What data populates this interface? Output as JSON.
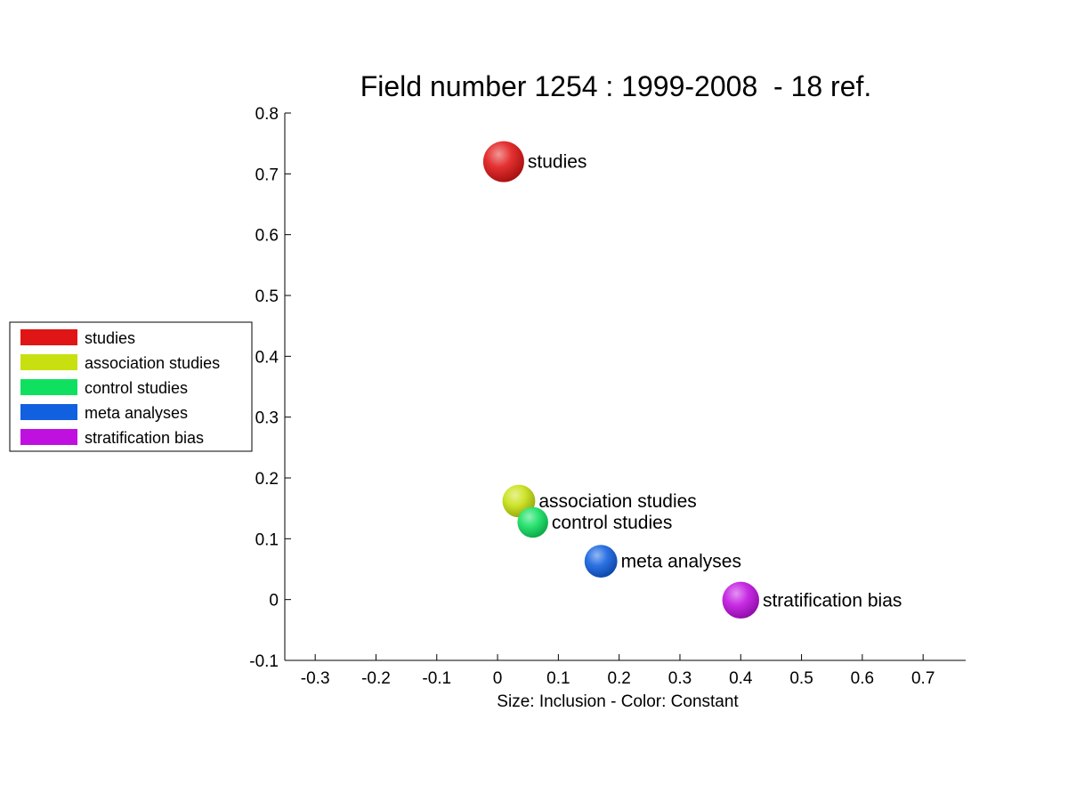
{
  "chart_data": {
    "type": "scatter",
    "title": "Field number 1254 : 1999-2008  - 18 ref.",
    "xlabel": "Size: Inclusion - Color: Constant",
    "ylabel": "",
    "xlim": [
      -0.35,
      0.77
    ],
    "ylim": [
      -0.1,
      0.8
    ],
    "xticks": [
      "-0.3",
      "-0.2",
      "-0.1",
      "0",
      "0.1",
      "0.2",
      "0.3",
      "0.4",
      "0.5",
      "0.6",
      "0.7"
    ],
    "yticks": [
      "-0.1",
      "0",
      "0.1",
      "0.2",
      "0.3",
      "0.4",
      "0.5",
      "0.6",
      "0.7",
      "0.8"
    ],
    "grid": false,
    "legend_position": "left",
    "series": [
      {
        "name": "studies",
        "x": 0.01,
        "y": 0.72,
        "size": 1.0,
        "color": "#e01515"
      },
      {
        "name": "association studies",
        "x": 0.035,
        "y": 0.162,
        "size": 0.8,
        "color": "#c8e010"
      },
      {
        "name": "control studies",
        "x": 0.058,
        "y": 0.127,
        "size": 0.75,
        "color": "#10e060"
      },
      {
        "name": "meta analyses",
        "x": 0.17,
        "y": 0.063,
        "size": 0.8,
        "color": "#1060e0"
      },
      {
        "name": "stratification bias",
        "x": 0.4,
        "y": -0.001,
        "size": 0.9,
        "color": "#c010e0"
      }
    ]
  }
}
